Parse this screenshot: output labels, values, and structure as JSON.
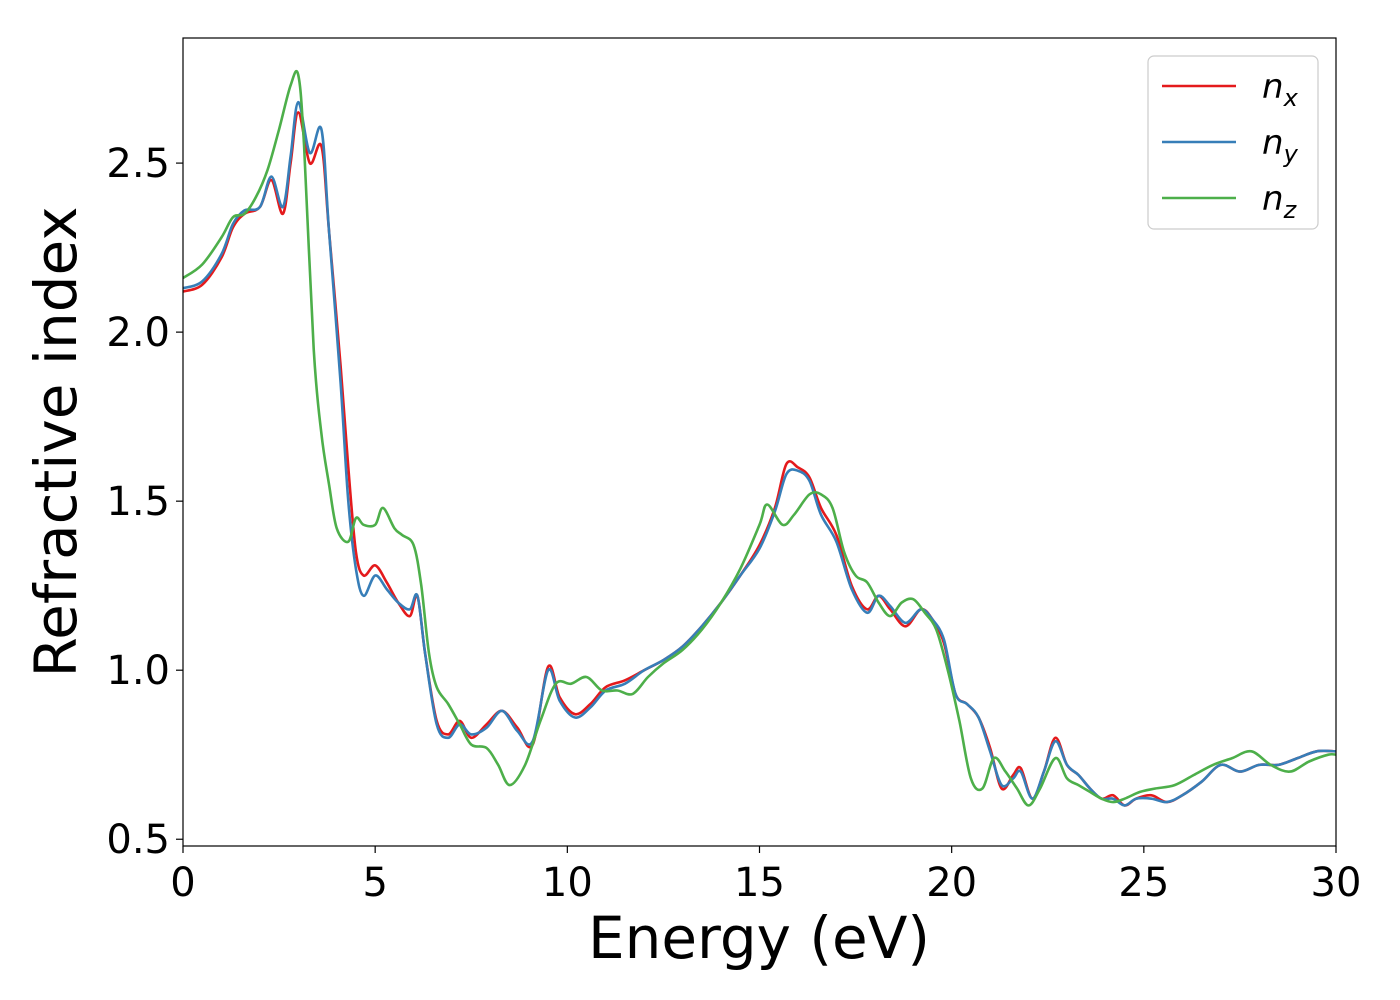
{
  "chart_data": {
    "type": "line",
    "xlabel": "Energy (eV)",
    "ylabel": "Refractive index",
    "xlim": [
      0,
      30
    ],
    "ylim": [
      0.48,
      2.87
    ],
    "xticks": [
      0,
      5,
      10,
      15,
      20,
      25,
      30
    ],
    "xtick_labels": [
      "0",
      "5",
      "10",
      "15",
      "20",
      "25",
      "30"
    ],
    "yticks": [
      0.5,
      1.0,
      1.5,
      2.0,
      2.5
    ],
    "ytick_labels": [
      "0.5",
      "1.0",
      "1.5",
      "2.0",
      "2.5"
    ],
    "grid": false,
    "legend_position": "top-right",
    "series": [
      {
        "name": "n_x",
        "label_base": "n",
        "label_sub": "x",
        "color": "#e41a1c",
        "x": [
          0,
          0.5,
          1.0,
          1.3,
          1.6,
          2.0,
          2.3,
          2.6,
          2.8,
          3.0,
          3.3,
          3.6,
          3.8,
          4.1,
          4.3,
          4.5,
          4.7,
          5.0,
          5.3,
          5.6,
          5.9,
          6.1,
          6.3,
          6.6,
          6.9,
          7.2,
          7.5,
          7.9,
          8.3,
          8.7,
          9.1,
          9.5,
          9.8,
          10.2,
          10.6,
          11.0,
          11.5,
          12.0,
          12.5,
          13.0,
          13.5,
          14.0,
          14.5,
          15.0,
          15.4,
          15.7,
          16.0,
          16.3,
          16.6,
          17.0,
          17.4,
          17.8,
          18.1,
          18.4,
          18.8,
          19.2,
          19.5,
          19.8,
          20.1,
          20.4,
          20.7,
          21.0,
          21.3,
          21.6,
          21.8,
          22.1,
          22.4,
          22.7,
          23.0,
          23.3,
          23.6,
          23.9,
          24.2,
          24.5,
          24.8,
          25.2,
          25.6,
          26.0,
          26.5,
          27.0,
          27.5,
          28.0,
          28.5,
          29.0,
          29.5,
          30.0
        ],
        "y": [
          2.12,
          2.14,
          2.22,
          2.31,
          2.35,
          2.37,
          2.45,
          2.35,
          2.5,
          2.65,
          2.5,
          2.55,
          2.3,
          1.9,
          1.6,
          1.35,
          1.28,
          1.31,
          1.26,
          1.2,
          1.16,
          1.22,
          1.05,
          0.85,
          0.81,
          0.85,
          0.8,
          0.84,
          0.88,
          0.83,
          0.78,
          1.01,
          0.92,
          0.87,
          0.9,
          0.95,
          0.97,
          1.0,
          1.03,
          1.07,
          1.13,
          1.2,
          1.28,
          1.37,
          1.48,
          1.61,
          1.6,
          1.57,
          1.48,
          1.4,
          1.25,
          1.18,
          1.22,
          1.18,
          1.13,
          1.18,
          1.15,
          1.08,
          0.93,
          0.9,
          0.86,
          0.77,
          0.65,
          0.69,
          0.71,
          0.62,
          0.7,
          0.8,
          0.72,
          0.69,
          0.65,
          0.62,
          0.63,
          0.6,
          0.62,
          0.63,
          0.61,
          0.63,
          0.67,
          0.72,
          0.7,
          0.72,
          0.72,
          0.74,
          0.76,
          0.76
        ]
      },
      {
        "name": "n_y",
        "label_base": "n",
        "label_sub": "y",
        "color": "#377eb8",
        "x": [
          0,
          0.5,
          1.0,
          1.3,
          1.6,
          2.0,
          2.3,
          2.6,
          2.8,
          3.0,
          3.3,
          3.6,
          3.8,
          4.1,
          4.3,
          4.5,
          4.7,
          5.0,
          5.3,
          5.6,
          5.9,
          6.1,
          6.3,
          6.6,
          6.9,
          7.2,
          7.5,
          7.9,
          8.3,
          8.7,
          9.1,
          9.5,
          9.8,
          10.2,
          10.6,
          11.0,
          11.5,
          12.0,
          12.5,
          13.0,
          13.5,
          14.0,
          14.5,
          15.0,
          15.4,
          15.7,
          16.0,
          16.3,
          16.6,
          17.0,
          17.4,
          17.8,
          18.1,
          18.4,
          18.8,
          19.2,
          19.5,
          19.8,
          20.1,
          20.4,
          20.7,
          21.0,
          21.3,
          21.6,
          21.8,
          22.1,
          22.4,
          22.7,
          23.0,
          23.3,
          23.6,
          23.9,
          24.2,
          24.5,
          24.8,
          25.2,
          25.6,
          26.0,
          26.5,
          27.0,
          27.5,
          28.0,
          28.5,
          29.0,
          29.5,
          30.0
        ],
        "y": [
          2.13,
          2.15,
          2.23,
          2.32,
          2.36,
          2.37,
          2.46,
          2.37,
          2.52,
          2.68,
          2.53,
          2.6,
          2.3,
          1.85,
          1.5,
          1.3,
          1.22,
          1.28,
          1.24,
          1.2,
          1.18,
          1.22,
          1.05,
          0.84,
          0.8,
          0.84,
          0.81,
          0.83,
          0.88,
          0.82,
          0.79,
          1.0,
          0.91,
          0.86,
          0.89,
          0.94,
          0.96,
          1.0,
          1.03,
          1.07,
          1.13,
          1.2,
          1.28,
          1.36,
          1.47,
          1.58,
          1.59,
          1.56,
          1.46,
          1.38,
          1.24,
          1.17,
          1.22,
          1.19,
          1.14,
          1.18,
          1.15,
          1.09,
          0.93,
          0.9,
          0.86,
          0.76,
          0.66,
          0.68,
          0.7,
          0.62,
          0.7,
          0.79,
          0.72,
          0.69,
          0.65,
          0.62,
          0.62,
          0.6,
          0.62,
          0.62,
          0.61,
          0.63,
          0.67,
          0.72,
          0.7,
          0.72,
          0.72,
          0.74,
          0.76,
          0.76
        ]
      },
      {
        "name": "n_z",
        "label_base": "n",
        "label_sub": "z",
        "color": "#4daf4a",
        "x": [
          0,
          0.5,
          1.0,
          1.3,
          1.6,
          1.9,
          2.2,
          2.5,
          2.8,
          3.0,
          3.15,
          3.4,
          3.6,
          3.8,
          4.0,
          4.3,
          4.5,
          4.7,
          5.0,
          5.2,
          5.5,
          5.7,
          6.0,
          6.2,
          6.4,
          6.6,
          6.9,
          7.2,
          7.5,
          7.9,
          8.2,
          8.5,
          8.9,
          9.3,
          9.7,
          10.1,
          10.5,
          10.9,
          11.3,
          11.7,
          12.1,
          12.5,
          13.0,
          13.5,
          14.0,
          14.5,
          15.0,
          15.2,
          15.6,
          15.9,
          16.3,
          16.6,
          16.9,
          17.2,
          17.5,
          17.8,
          18.1,
          18.4,
          18.7,
          19.0,
          19.3,
          19.6,
          19.9,
          20.2,
          20.5,
          20.8,
          21.1,
          21.4,
          21.7,
          22.0,
          22.3,
          22.7,
          23.0,
          23.3,
          23.6,
          23.9,
          24.2,
          24.5,
          24.9,
          25.3,
          25.8,
          26.3,
          26.8,
          27.3,
          27.8,
          28.3,
          28.8,
          29.3,
          29.8,
          30.0
        ],
        "y": [
          2.16,
          2.2,
          2.28,
          2.34,
          2.35,
          2.4,
          2.48,
          2.6,
          2.73,
          2.76,
          2.55,
          1.95,
          1.7,
          1.55,
          1.42,
          1.38,
          1.45,
          1.43,
          1.43,
          1.48,
          1.42,
          1.4,
          1.37,
          1.25,
          1.05,
          0.95,
          0.9,
          0.84,
          0.78,
          0.77,
          0.72,
          0.66,
          0.72,
          0.85,
          0.96,
          0.96,
          0.98,
          0.94,
          0.94,
          0.93,
          0.98,
          1.02,
          1.06,
          1.12,
          1.2,
          1.3,
          1.43,
          1.49,
          1.43,
          1.46,
          1.52,
          1.52,
          1.48,
          1.35,
          1.28,
          1.26,
          1.2,
          1.16,
          1.2,
          1.21,
          1.17,
          1.12,
          1.0,
          0.85,
          0.68,
          0.65,
          0.74,
          0.7,
          0.65,
          0.6,
          0.65,
          0.74,
          0.68,
          0.66,
          0.64,
          0.62,
          0.61,
          0.62,
          0.64,
          0.65,
          0.66,
          0.69,
          0.72,
          0.74,
          0.76,
          0.72,
          0.7,
          0.73,
          0.75,
          0.75
        ]
      }
    ]
  }
}
